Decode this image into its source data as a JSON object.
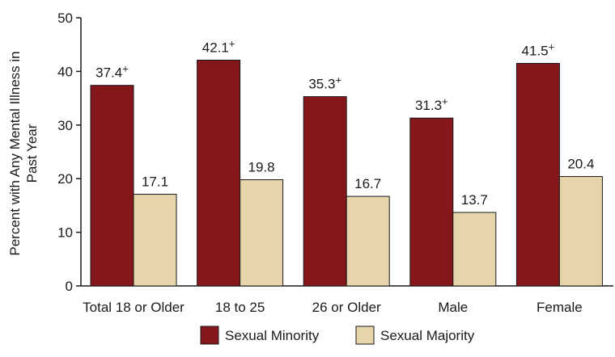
{
  "chart_data": {
    "type": "bar",
    "categories": [
      "Total 18 or Older",
      "18 to 25",
      "26 or Older",
      "Male",
      "Female"
    ],
    "series": [
      {
        "name": "Sexual Minority",
        "values": [
          37.4,
          42.1,
          35.3,
          31.3,
          41.5
        ],
        "labels": [
          "37.4+",
          "42.1+",
          "35.3+",
          "31.3+",
          "41.5+"
        ],
        "color": "#85171a"
      },
      {
        "name": "Sexual Majority",
        "values": [
          17.1,
          19.8,
          16.7,
          13.7,
          20.4
        ],
        "labels": [
          "17.1",
          "19.8",
          "16.7",
          "13.7",
          "20.4"
        ],
        "color": "#e6d5ab"
      }
    ],
    "ylabel_line1": "Percent with Any Mental Illness in",
    "ylabel_line2": "Past Year",
    "ylim": [
      0,
      50
    ],
    "yticks": [
      "0",
      "10",
      "20",
      "30",
      "40",
      "50"
    ],
    "grid": false,
    "legend_position": "bottom"
  }
}
